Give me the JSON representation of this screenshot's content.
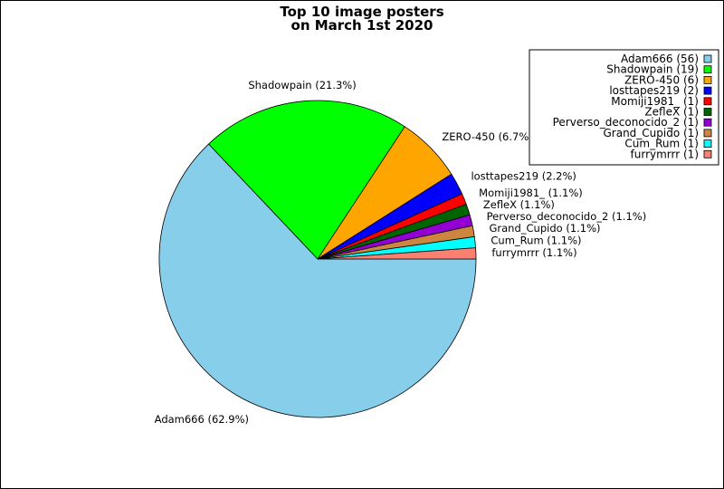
{
  "chart_data": {
    "type": "pie",
    "title": [
      "Top 10 image posters",
      "on March 1st 2020"
    ],
    "slices": [
      {
        "name": "Adam666",
        "count": 56,
        "percent_label": "62.9%",
        "color": "#87ceeb"
      },
      {
        "name": "Shadowpain",
        "count": 19,
        "percent_label": "21.3%",
        "color": "#00ff00"
      },
      {
        "name": "ZERO-450",
        "count": 6,
        "percent_label": "6.7%",
        "color": "#ffa500"
      },
      {
        "name": "losttapes219",
        "count": 2,
        "percent_label": "2.2%",
        "color": "#0000ff"
      },
      {
        "name": "Momiji1981_",
        "count": 1,
        "percent_label": "1.1%",
        "color": "#ff0000"
      },
      {
        "name": "ZefleX",
        "count": 1,
        "percent_label": "1.1%",
        "color": "#006400"
      },
      {
        "name": "Perverso_deconocido_2",
        "count": 1,
        "percent_label": "1.1%",
        "color": "#9400d3"
      },
      {
        "name": "Grand_Cupido",
        "count": 1,
        "percent_label": "1.1%",
        "color": "#cd853f"
      },
      {
        "name": "Cum_Rum",
        "count": 1,
        "percent_label": "1.1%",
        "color": "#00ffff"
      },
      {
        "name": "furrymrrr",
        "count": 1,
        "percent_label": "1.1%",
        "color": "#fa8072"
      }
    ],
    "legend_position": "top-right"
  }
}
